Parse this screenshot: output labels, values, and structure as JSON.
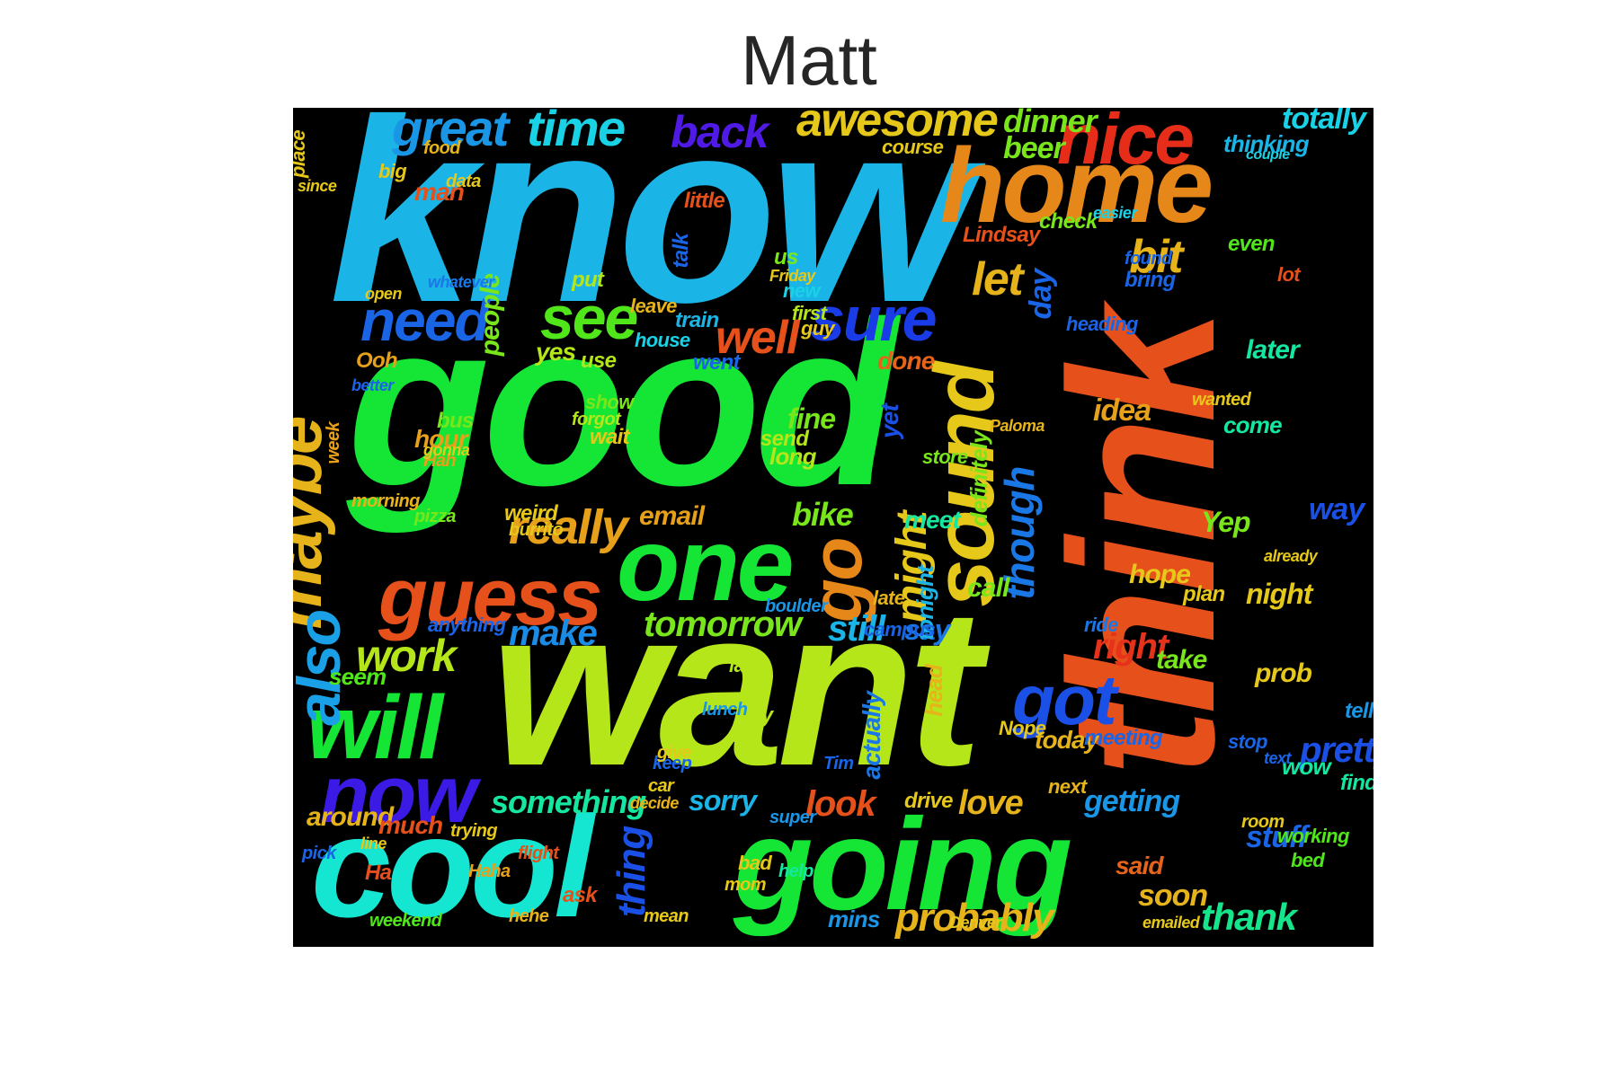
{
  "title": "Matt",
  "words": [
    {
      "text": "know",
      "color": "#1ab4e6",
      "weight": 1.0
    },
    {
      "text": "good",
      "color": "#15e635",
      "weight": 1.0
    },
    {
      "text": "want",
      "color": "#b4e61a",
      "weight": 1.0
    },
    {
      "text": "think",
      "color": "#e6501a",
      "weight": 0.95
    },
    {
      "text": "cool",
      "color": "#15e6d2",
      "weight": 0.7
    },
    {
      "text": "going",
      "color": "#15e635",
      "weight": 0.7
    },
    {
      "text": "home",
      "color": "#e6871a",
      "weight": 0.6
    },
    {
      "text": "one",
      "color": "#15e635",
      "weight": 0.55
    },
    {
      "text": "sound",
      "color": "#e6c81a",
      "weight": 0.5
    },
    {
      "text": "guess",
      "color": "#e6501a",
      "weight": 0.45
    },
    {
      "text": "will",
      "color": "#15e635",
      "weight": 0.45
    },
    {
      "text": "now",
      "color": "#3c1ae6",
      "weight": 0.45
    },
    {
      "text": "nice",
      "color": "#e62d1a",
      "weight": 0.4
    },
    {
      "text": "got",
      "color": "#1a50e6",
      "weight": 0.4
    },
    {
      "text": "maybe",
      "color": "#e6b41a",
      "weight": 0.38
    },
    {
      "text": "go",
      "color": "#e6871a",
      "weight": 0.4
    },
    {
      "text": "sure",
      "color": "#1a3ce6",
      "weight": 0.35
    },
    {
      "text": "see",
      "color": "#50e61a",
      "weight": 0.35
    },
    {
      "text": "need",
      "color": "#1a64e6",
      "weight": 0.35
    },
    {
      "text": "great",
      "color": "#1a96e6",
      "weight": 0.3
    },
    {
      "text": "time",
      "color": "#1ad2e6",
      "weight": 0.3
    },
    {
      "text": "awesome",
      "color": "#e6c81a",
      "weight": 0.3
    },
    {
      "text": "back",
      "color": "#501ae6",
      "weight": 0.28
    },
    {
      "text": "also",
      "color": "#1aa0e6",
      "weight": 0.3
    },
    {
      "text": "really",
      "color": "#e6a01a",
      "weight": 0.28
    },
    {
      "text": "well",
      "color": "#e6501a",
      "weight": 0.28
    },
    {
      "text": "let",
      "color": "#e6b41a",
      "weight": 0.25
    },
    {
      "text": "bit",
      "color": "#e6b41a",
      "weight": 0.25
    },
    {
      "text": "work",
      "color": "#b4e61a",
      "weight": 0.25
    },
    {
      "text": "might",
      "color": "#e6c81a",
      "weight": 0.25
    },
    {
      "text": "though",
      "color": "#1a78e6",
      "weight": 0.25
    },
    {
      "text": "probably",
      "color": "#e6b41a",
      "weight": 0.22
    },
    {
      "text": "thing",
      "color": "#1a50e6",
      "weight": 0.22
    },
    {
      "text": "pretty",
      "color": "#1a50e6",
      "weight": 0.22
    },
    {
      "text": "thank",
      "color": "#15e68c",
      "weight": 0.22
    },
    {
      "text": "tomorrow",
      "color": "#78e61a",
      "weight": 0.2
    },
    {
      "text": "right",
      "color": "#e6321a",
      "weight": 0.2
    },
    {
      "text": "make",
      "color": "#1a8ce6",
      "weight": 0.2
    },
    {
      "text": "still",
      "color": "#1ab4e6",
      "weight": 0.2
    },
    {
      "text": "look",
      "color": "#e6501a",
      "weight": 0.2
    },
    {
      "text": "love",
      "color": "#e6b41a",
      "weight": 0.2
    },
    {
      "text": "something",
      "color": "#15e6a0",
      "weight": 0.18
    },
    {
      "text": "dinner",
      "color": "#78e61a",
      "weight": 0.18
    },
    {
      "text": "totally",
      "color": "#1ad2e6",
      "weight": 0.16
    },
    {
      "text": "beer",
      "color": "#78e61a",
      "weight": 0.16
    },
    {
      "text": "idea",
      "color": "#e6a01a",
      "weight": 0.16
    },
    {
      "text": "getting",
      "color": "#1a96e6",
      "weight": 0.16
    },
    {
      "text": "stuff",
      "color": "#1a64e6",
      "weight": 0.16
    },
    {
      "text": "sorry",
      "color": "#1ab4e6",
      "weight": 0.16
    },
    {
      "text": "bike",
      "color": "#78e61a",
      "weight": 0.16
    },
    {
      "text": "fine",
      "color": "#78e61a",
      "weight": 0.15
    },
    {
      "text": "around",
      "color": "#e6b41a",
      "weight": 0.15
    },
    {
      "text": "day",
      "color": "#1a64e6",
      "weight": 0.15
    },
    {
      "text": "say",
      "color": "#1a78e6",
      "weight": 0.15
    },
    {
      "text": "night",
      "color": "#e6c81a",
      "weight": 0.15
    },
    {
      "text": "way",
      "color": "#1a50e6",
      "weight": 0.15
    },
    {
      "text": "email",
      "color": "#e6a01a",
      "weight": 0.15
    },
    {
      "text": "people",
      "color": "#78e61a",
      "weight": 0.15
    },
    {
      "text": "hope",
      "color": "#e6c81a",
      "weight": 0.14
    },
    {
      "text": "check",
      "color": "#78e61a",
      "weight": 0.13
    },
    {
      "text": "later",
      "color": "#15e6a0",
      "weight": 0.14
    },
    {
      "text": "soon",
      "color": "#e6b41a",
      "weight": 0.14
    },
    {
      "text": "call",
      "color": "#78e61a",
      "weight": 0.14
    },
    {
      "text": "much",
      "color": "#e6501a",
      "weight": 0.14
    },
    {
      "text": "take",
      "color": "#78e61a",
      "weight": 0.14
    },
    {
      "text": "prob",
      "color": "#e6c81a",
      "weight": 0.14
    },
    {
      "text": "done",
      "color": "#e6641a",
      "weight": 0.14
    },
    {
      "text": "even",
      "color": "#50e61a",
      "weight": 0.12
    },
    {
      "text": "meet",
      "color": "#15e6a0",
      "weight": 0.13
    },
    {
      "text": "today",
      "color": "#e6b41a",
      "weight": 0.13
    },
    {
      "text": "said",
      "color": "#e6641a",
      "weight": 0.13
    },
    {
      "text": "yes",
      "color": "#b4e61a",
      "weight": 0.12
    },
    {
      "text": "drive",
      "color": "#e6c81a",
      "weight": 0.12
    },
    {
      "text": "actually",
      "color": "#1a78e6",
      "weight": 0.12
    },
    {
      "text": "seem",
      "color": "#50e61a",
      "weight": 0.12
    },
    {
      "text": "come",
      "color": "#15e6a0",
      "weight": 0.12
    },
    {
      "text": "head",
      "color": "#e6b41a",
      "weight": 0.12
    },
    {
      "text": "tonight",
      "color": "#1ab4e6",
      "weight": 0.12
    },
    {
      "text": "definitely",
      "color": "#78e61a",
      "weight": 0.11
    },
    {
      "text": "man",
      "color": "#e6501a",
      "weight": 0.12
    },
    {
      "text": "hour",
      "color": "#e6a01a",
      "weight": 0.12
    },
    {
      "text": "lot",
      "color": "#e6501a",
      "weight": 0.11
    },
    {
      "text": "food",
      "color": "#e6b41a",
      "weight": 0.1
    },
    {
      "text": "plan",
      "color": "#e6c81a",
      "weight": 0.1
    },
    {
      "text": "tell",
      "color": "#1a96e6",
      "weight": 0.1
    },
    {
      "text": "wow",
      "color": "#15e6a0",
      "weight": 0.1
    },
    {
      "text": "find",
      "color": "#15e6a0",
      "weight": 0.1
    },
    {
      "text": "working",
      "color": "#50e61a",
      "weight": 0.1
    },
    {
      "text": "course",
      "color": "#e6c81a",
      "weight": 0.1
    },
    {
      "text": "train",
      "color": "#1ab4e6",
      "weight": 0.1
    },
    {
      "text": "first",
      "color": "#b4e61a",
      "weight": 0.1
    },
    {
      "text": "guy",
      "color": "#e6c81a",
      "weight": 0.1
    },
    {
      "text": "weird",
      "color": "#e6c81a",
      "weight": 0.1
    },
    {
      "text": "long",
      "color": "#b4e61a",
      "weight": 0.1
    },
    {
      "text": "send",
      "color": "#b4e61a",
      "weight": 0.1
    },
    {
      "text": "wait",
      "color": "#e6c81a",
      "weight": 0.1
    },
    {
      "text": "house",
      "color": "#1ad2e6",
      "weight": 0.1
    },
    {
      "text": "went",
      "color": "#1a64e6",
      "weight": 0.1
    },
    {
      "text": "heading",
      "color": "#1a64e6",
      "weight": 0.1
    },
    {
      "text": "ride",
      "color": "#1a78e6",
      "weight": 0.1
    },
    {
      "text": "meeting",
      "color": "#1a64e6",
      "weight": 0.1
    },
    {
      "text": "next",
      "color": "#e6b41a",
      "weight": 0.09
    },
    {
      "text": "wanted",
      "color": "#e6c81a",
      "weight": 0.08
    },
    {
      "text": "already",
      "color": "#e6c81a",
      "weight": 0.08
    },
    {
      "text": "bring",
      "color": "#1a64e6",
      "weight": 0.09
    },
    {
      "text": "found",
      "color": "#1a64e6",
      "weight": 0.08
    },
    {
      "text": "thinking",
      "color": "#1ab4e6",
      "weight": 0.09
    },
    {
      "text": "little",
      "color": "#e6501a",
      "weight": 0.09
    },
    {
      "text": "talk",
      "color": "#1a64e6",
      "weight": 0.09
    },
    {
      "text": "put",
      "color": "#b4e61a",
      "weight": 0.09
    },
    {
      "text": "us",
      "color": "#78e61a",
      "weight": 0.09
    },
    {
      "text": "new",
      "color": "#1ad2e6",
      "weight": 0.09
    },
    {
      "text": "leave",
      "color": "#e6b41a",
      "weight": 0.09
    },
    {
      "text": "use",
      "color": "#b4e61a",
      "weight": 0.08
    },
    {
      "text": "Ooh",
      "color": "#e6a01a",
      "weight": 0.08
    },
    {
      "text": "bus",
      "color": "#78e61a",
      "weight": 0.08
    },
    {
      "text": "Hah",
      "color": "#e6a01a",
      "weight": 0.08
    },
    {
      "text": "week",
      "color": "#e6a01a",
      "weight": 0.08
    },
    {
      "text": "show",
      "color": "#78e61a",
      "weight": 0.08
    },
    {
      "text": "forgot",
      "color": "#b4e61a",
      "weight": 0.08
    },
    {
      "text": "Lindsay",
      "color": "#e6501a",
      "weight": 0.09
    },
    {
      "text": "Yep",
      "color": "#78e61a",
      "weight": 0.1
    },
    {
      "text": "place",
      "color": "#e6c81a",
      "weight": 0.09
    },
    {
      "text": "last",
      "color": "#b4e61a",
      "weight": 0.08
    },
    {
      "text": "try",
      "color": "#b4e61a",
      "weight": 0.09
    },
    {
      "text": "anything",
      "color": "#1a64e6",
      "weight": 0.08
    },
    {
      "text": "boulder",
      "color": "#1a96e6",
      "weight": 0.08
    },
    {
      "text": "campus",
      "color": "#1a64e6",
      "weight": 0.08
    },
    {
      "text": "late",
      "color": "#e6b41a",
      "weight": 0.08
    },
    {
      "text": "Ha",
      "color": "#e6501a",
      "weight": 0.08
    },
    {
      "text": "Haha",
      "color": "#e6a01a",
      "weight": 0.07
    },
    {
      "text": "ask",
      "color": "#e6501a",
      "weight": 0.08
    },
    {
      "text": "mins",
      "color": "#1a96e6",
      "weight": 0.09
    },
    {
      "text": "weekend",
      "color": "#50e61a",
      "weight": 0.07
    },
    {
      "text": "hehe",
      "color": "#e6b41a",
      "weight": 0.07
    },
    {
      "text": "mean",
      "color": "#e6c81a",
      "weight": 0.07
    },
    {
      "text": "flight",
      "color": "#e6501a",
      "weight": 0.07
    },
    {
      "text": "trying",
      "color": "#e6c81a",
      "weight": 0.07
    },
    {
      "text": "morning",
      "color": "#e6b41a",
      "weight": 0.07
    },
    {
      "text": "pizza",
      "color": "#78e61a",
      "weight": 0.07
    },
    {
      "text": "burrito",
      "color": "#e6c81a",
      "weight": 0.07
    },
    {
      "text": "store",
      "color": "#78e61a",
      "weight": 0.07
    },
    {
      "text": "Paloma",
      "color": "#e6b41a",
      "weight": 0.07
    },
    {
      "text": "room",
      "color": "#e6c81a",
      "weight": 0.07
    },
    {
      "text": "bed",
      "color": "#50e61a",
      "weight": 0.07
    },
    {
      "text": "pick",
      "color": "#1a64e6",
      "weight": 0.07
    },
    {
      "text": "since",
      "color": "#e6c81a",
      "weight": 0.06
    },
    {
      "text": "big",
      "color": "#e6c81a",
      "weight": 0.06
    },
    {
      "text": "data",
      "color": "#e6c81a",
      "weight": 0.06
    },
    {
      "text": "open",
      "color": "#e6c81a",
      "weight": 0.06
    },
    {
      "text": "better",
      "color": "#1a64e6",
      "weight": 0.06
    },
    {
      "text": "whatever",
      "color": "#1a78e6",
      "weight": 0.06
    },
    {
      "text": "yet",
      "color": "#1a50e6",
      "weight": 0.08
    },
    {
      "text": "super",
      "color": "#1a96e6",
      "weight": 0.06
    },
    {
      "text": "lunch",
      "color": "#1a96e6",
      "weight": 0.06
    },
    {
      "text": "mom",
      "color": "#e6c81a",
      "weight": 0.06
    },
    {
      "text": "Nope",
      "color": "#e6c81a",
      "weight": 0.06
    },
    {
      "text": "Denver",
      "color": "#e6c81a",
      "weight": 0.06
    },
    {
      "text": "emailed",
      "color": "#e6c81a",
      "weight": 0.06
    },
    {
      "text": "keep",
      "color": "#1a64e6",
      "weight": 0.06
    },
    {
      "text": "give",
      "color": "#e6c81a",
      "weight": 0.06
    },
    {
      "text": "car",
      "color": "#e6c81a",
      "weight": 0.06
    },
    {
      "text": "decide",
      "color": "#e6b41a",
      "weight": 0.06
    },
    {
      "text": "bad",
      "color": "#e6c81a",
      "weight": 0.06
    },
    {
      "text": "help",
      "color": "#15e6a0",
      "weight": 0.06
    },
    {
      "text": "text",
      "color": "#1a64e6",
      "weight": 0.06
    },
    {
      "text": "stop",
      "color": "#1a64e6",
      "weight": 0.06
    },
    {
      "text": "line",
      "color": "#e6c81a",
      "weight": 0.05
    },
    {
      "text": "Tim",
      "color": "#1a64e6",
      "weight": 0.05
    },
    {
      "text": "Friday",
      "color": "#e6c81a",
      "weight": 0.05
    },
    {
      "text": "gonna",
      "color": "#e6c81a",
      "weight": 0.05
    },
    {
      "text": "easier",
      "color": "#1ad2e6",
      "weight": 0.04
    },
    {
      "text": "couple",
      "color": "#1ad2e6",
      "weight": 0.04
    }
  ]
}
